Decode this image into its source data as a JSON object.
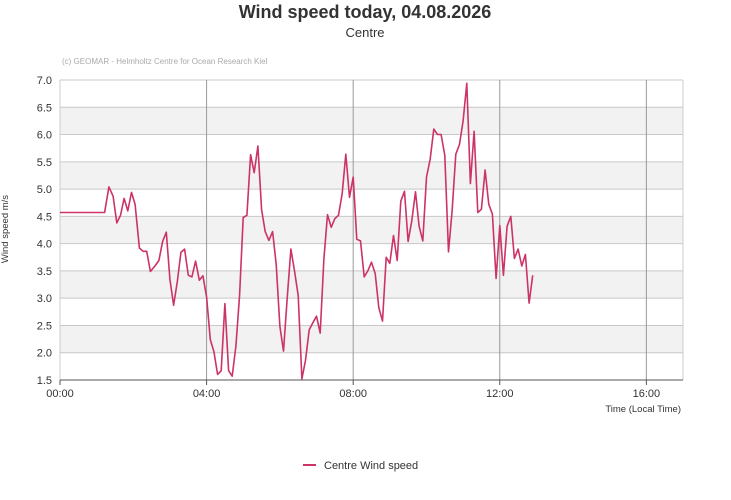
{
  "chart_data": {
    "type": "line",
    "title": "Wind speed today, 04.08.2026",
    "subtitle": "Centre",
    "credit": "(c) GEOMAR - Helmholtz Centre for Ocean Research Kiel",
    "xlabel": "Time (Local Time)",
    "ylabel": "Wind speed  m/s",
    "xlim": [
      0,
      1020
    ],
    "ylim": [
      1.5,
      7.0
    ],
    "x_ticks": [
      {
        "value": 0,
        "label": "00:00"
      },
      {
        "value": 240,
        "label": "04:00"
      },
      {
        "value": 480,
        "label": "08:00"
      },
      {
        "value": 720,
        "label": "12:00"
      },
      {
        "value": 960,
        "label": "16:00"
      }
    ],
    "y_ticks": [
      {
        "value": 1.5,
        "label": "1.5"
      },
      {
        "value": 2.0,
        "label": "2.0"
      },
      {
        "value": 2.5,
        "label": "2.5"
      },
      {
        "value": 3.0,
        "label": "3.0"
      },
      {
        "value": 3.5,
        "label": "3.5"
      },
      {
        "value": 4.0,
        "label": "4.0"
      },
      {
        "value": 4.5,
        "label": "4.5"
      },
      {
        "value": 5.0,
        "label": "5.0"
      },
      {
        "value": 5.5,
        "label": "5.5"
      },
      {
        "value": 6.0,
        "label": "6.0"
      },
      {
        "value": 6.5,
        "label": "6.5"
      },
      {
        "value": 7.0,
        "label": "7.0"
      }
    ],
    "grid": true,
    "legend": "bottom",
    "color": "#cc3366",
    "series": [
      {
        "name": "Centre Wind speed",
        "points": [
          [
            0,
            4.57
          ],
          [
            73,
            4.57
          ],
          [
            80,
            5.04
          ],
          [
            87,
            4.87
          ],
          [
            93,
            4.38
          ],
          [
            99,
            4.52
          ],
          [
            105,
            4.83
          ],
          [
            111,
            4.6
          ],
          [
            117,
            4.94
          ],
          [
            123,
            4.72
          ],
          [
            130,
            3.92
          ],
          [
            136,
            3.86
          ],
          [
            142,
            3.86
          ],
          [
            148,
            3.49
          ],
          [
            156,
            3.6
          ],
          [
            162,
            3.69
          ],
          [
            168,
            4.04
          ],
          [
            174,
            4.21
          ],
          [
            180,
            3.35
          ],
          [
            186,
            2.87
          ],
          [
            192,
            3.3
          ],
          [
            198,
            3.84
          ],
          [
            204,
            3.9
          ],
          [
            210,
            3.42
          ],
          [
            216,
            3.39
          ],
          [
            222,
            3.68
          ],
          [
            228,
            3.33
          ],
          [
            234,
            3.41
          ],
          [
            240,
            3.02
          ],
          [
            246,
            2.24
          ],
          [
            252,
            2.02
          ],
          [
            258,
            1.6
          ],
          [
            264,
            1.67
          ],
          [
            270,
            2.9
          ],
          [
            276,
            1.67
          ],
          [
            282,
            1.57
          ],
          [
            288,
            2.12
          ],
          [
            294,
            3.06
          ],
          [
            300,
            4.48
          ],
          [
            306,
            4.52
          ],
          [
            312,
            5.63
          ],
          [
            318,
            5.3
          ],
          [
            324,
            5.79
          ],
          [
            330,
            4.62
          ],
          [
            336,
            4.22
          ],
          [
            342,
            4.06
          ],
          [
            348,
            4.22
          ],
          [
            354,
            3.62
          ],
          [
            360,
            2.48
          ],
          [
            366,
            2.03
          ],
          [
            372,
            3.0
          ],
          [
            378,
            3.9
          ],
          [
            384,
            3.5
          ],
          [
            390,
            3.05
          ],
          [
            396,
            1.52
          ],
          [
            402,
            1.86
          ],
          [
            408,
            2.42
          ],
          [
            414,
            2.55
          ],
          [
            420,
            2.67
          ],
          [
            426,
            2.36
          ],
          [
            432,
            3.72
          ],
          [
            438,
            4.53
          ],
          [
            444,
            4.3
          ],
          [
            450,
            4.46
          ],
          [
            456,
            4.52
          ],
          [
            462,
            4.92
          ],
          [
            468,
            5.64
          ],
          [
            474,
            4.85
          ],
          [
            480,
            5.22
          ],
          [
            486,
            4.08
          ],
          [
            492,
            4.05
          ],
          [
            498,
            3.39
          ],
          [
            504,
            3.5
          ],
          [
            510,
            3.66
          ],
          [
            516,
            3.45
          ],
          [
            522,
            2.83
          ],
          [
            528,
            2.58
          ],
          [
            534,
            3.75
          ],
          [
            540,
            3.64
          ],
          [
            546,
            4.15
          ],
          [
            552,
            3.69
          ],
          [
            558,
            4.78
          ],
          [
            564,
            4.96
          ],
          [
            570,
            4.04
          ],
          [
            576,
            4.42
          ],
          [
            582,
            4.95
          ],
          [
            588,
            4.32
          ],
          [
            594,
            4.05
          ],
          [
            600,
            5.22
          ],
          [
            606,
            5.54
          ],
          [
            612,
            6.1
          ],
          [
            618,
            6.0
          ],
          [
            624,
            6.0
          ],
          [
            630,
            5.62
          ],
          [
            636,
            3.85
          ],
          [
            642,
            4.6
          ],
          [
            648,
            5.64
          ],
          [
            654,
            5.82
          ],
          [
            660,
            6.25
          ],
          [
            666,
            6.94
          ],
          [
            672,
            5.1
          ],
          [
            678,
            6.06
          ],
          [
            684,
            4.57
          ],
          [
            690,
            4.63
          ],
          [
            696,
            5.35
          ],
          [
            702,
            4.72
          ],
          [
            708,
            4.54
          ],
          [
            714,
            3.36
          ],
          [
            720,
            4.33
          ],
          [
            726,
            3.42
          ],
          [
            732,
            4.32
          ],
          [
            738,
            4.5
          ],
          [
            744,
            3.73
          ],
          [
            750,
            3.9
          ],
          [
            756,
            3.59
          ],
          [
            762,
            3.8
          ],
          [
            768,
            2.91
          ],
          [
            774,
            3.42
          ]
        ]
      }
    ]
  }
}
